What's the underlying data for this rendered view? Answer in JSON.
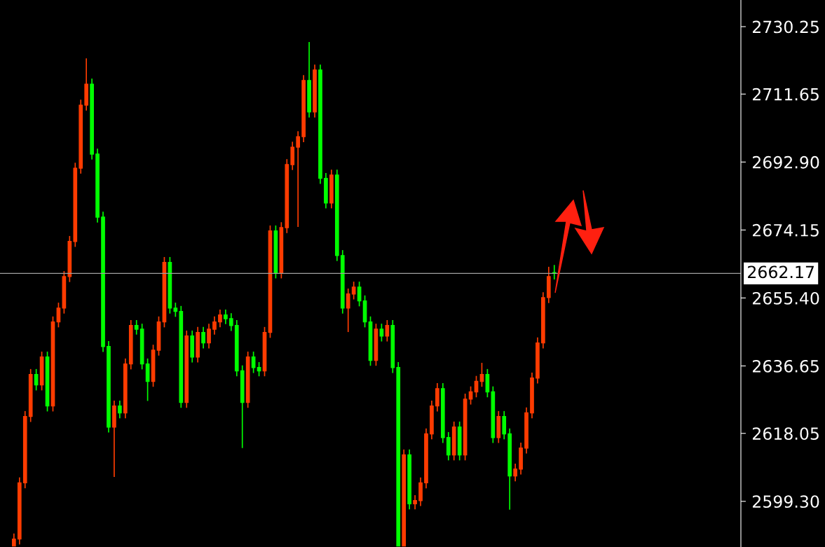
{
  "chart_data": {
    "type": "candlestick",
    "categories": [
      null,
      null,
      null,
      null,
      null,
      null,
      null,
      null,
      null,
      null,
      null,
      null,
      null,
      null,
      null,
      null,
      null,
      null,
      null,
      null,
      null,
      null,
      null,
      null,
      null,
      null,
      null,
      null,
      null,
      null,
      null,
      null,
      null,
      null,
      null,
      null,
      null,
      null,
      null,
      null,
      null,
      null,
      null,
      null,
      null,
      null,
      null,
      null,
      null,
      null,
      null,
      null,
      null,
      null,
      null,
      null,
      null,
      null,
      null,
      null,
      null,
      null,
      null,
      null,
      null,
      null,
      null,
      null,
      null,
      null,
      null,
      null,
      null,
      null,
      null,
      null,
      null,
      null,
      null,
      null,
      null,
      null,
      null,
      null,
      null,
      null,
      null,
      null,
      null,
      null,
      null,
      null,
      null,
      null,
      null,
      null,
      null,
      null,
      null,
      null,
      null,
      null,
      null,
      null,
      null,
      null,
      null,
      null,
      null,
      null,
      null,
      null,
      null,
      null,
      null,
      null,
      null,
      null,
      null,
      null,
      null,
      null,
      null,
      null,
      null,
      null,
      null,
      null,
      null,
      null,
      null,
      null,
      null
    ],
    "colors": [
      null,
      null,
      "#ff3c00",
      "#ff3c00",
      "#ff3c00",
      "#ff3c00",
      "#00ff00",
      "#ff3c00",
      "#00ff00",
      "#ff3c00",
      "#ff3c00",
      "#ff3c00",
      "#ff3c00",
      "#ff3c00",
      "#ff3c00",
      "#ff3c00",
      "#00ff00",
      "#00ff00",
      "#00ff00",
      "#00ff00",
      "#ff3c00",
      "#00ff00",
      "#ff3c00",
      "#ff3c00",
      "#00ff00",
      "#00ff00",
      "#00ff00",
      "#ff3c00",
      "#ff3c00",
      "#ff3c00",
      "#00ff00",
      "#00ff00",
      "#00ff00",
      "#ff3c00",
      "#00ff00",
      "#ff3c00",
      "#00ff00",
      "#ff3c00",
      "#ff3c00",
      "#ff3c00",
      "#00ff00",
      "#00ff00",
      "#00ff00",
      "#00ff00",
      "#ff3c00",
      "#00ff00",
      "#00ff00",
      "#ff3c00",
      "#ff3c00",
      "#00ff00",
      "#ff3c00",
      "#ff3c00",
      "#ff3c00",
      "#ff3c00",
      "#ff3c00",
      "#00ff00",
      "#ff3c00",
      "#00ff00",
      "#00ff00",
      "#ff3c00",
      "#00ff00",
      "#00ff00",
      "#ff3c00",
      "#ff3c00",
      "#00ff00",
      "#00ff00",
      "#00ff00",
      "#ff3c00",
      "#00ff00",
      "#ff3c00",
      "#00ff00",
      "#00ff00",
      "#ff3c00",
      "#00ff00",
      "#ff3c00",
      "#ff3c00",
      "#ff3c00",
      "#ff3c00",
      "#ff3c00",
      "#00ff00",
      "#00ff00",
      "#ff3c00",
      "#00ff00",
      "#ff3c00",
      "#ff3c00",
      "#ff3c00",
      "#ff3c00",
      "#00ff00",
      "#00ff00",
      "#ff3c00",
      "#00ff00",
      "#00ff00",
      "#ff3c00",
      "#ff3c00",
      "#ff3c00",
      "#ff3c00",
      "#ff3c00",
      "#ff3c00",
      "#ff3c00",
      "#00ff00",
      null,
      null,
      null,
      null,
      null,
      null,
      null,
      null,
      null,
      null,
      null,
      null,
      null,
      null,
      null,
      null,
      null,
      null,
      null,
      null,
      null,
      null,
      null,
      null,
      null,
      null,
      null,
      null,
      null,
      null,
      null,
      null,
      null
    ],
    "ohlc": [
      null,
      null,
      [
        2587.0,
        2590.4,
        2587.0,
        2588.9
      ],
      [
        2588.9,
        2605.9,
        2587.4,
        2604.4
      ],
      [
        2604.4,
        2624.2,
        2602.9,
        2622.7
      ],
      [
        2622.7,
        2635.8,
        2621.2,
        2634.3
      ],
      [
        2634.3,
        2635.8,
        2629.9,
        2631.4
      ],
      [
        2631.4,
        2640.6,
        2629.9,
        2639.1
      ],
      [
        2639.1,
        2640.6,
        2624.1,
        2625.6
      ],
      [
        2625.6,
        2650.3,
        2624.1,
        2648.8
      ],
      [
        2648.8,
        2654.1,
        2647.3,
        2652.6
      ],
      [
        2652.6,
        2662.8,
        2651.1,
        2661.3
      ],
      [
        2661.3,
        2672.5,
        2659.8,
        2671.0
      ],
      [
        2671.0,
        2692.7,
        2669.5,
        2691.2
      ],
      [
        2691.2,
        2710.1,
        2689.7,
        2708.6
      ],
      [
        2708.6,
        2721.5,
        2707.1,
        2714.4
      ],
      [
        2714.4,
        2715.9,
        2693.6,
        2695.1
      ],
      [
        2695.1,
        2696.6,
        2676.2,
        2677.7
      ],
      [
        2677.7,
        2679.2,
        2640.5,
        2642.0
      ],
      [
        2642.0,
        2643.5,
        2618.3,
        2619.8
      ],
      [
        2619.8,
        2627.1,
        2606.0,
        2625.6
      ],
      [
        2625.6,
        2627.1,
        2622.2,
        2623.7
      ],
      [
        2623.7,
        2638.7,
        2622.2,
        2637.2
      ],
      [
        2637.2,
        2649.3,
        2635.7,
        2647.8
      ],
      [
        2647.8,
        2649.3,
        2645.3,
        2646.8
      ],
      [
        2646.8,
        2648.3,
        2635.7,
        2637.2
      ],
      [
        2637.2,
        2638.7,
        2627.0,
        2632.4
      ],
      [
        2632.4,
        2642.5,
        2630.9,
        2641.0
      ],
      [
        2641.0,
        2650.3,
        2639.5,
        2648.8
      ],
      [
        2648.8,
        2666.7,
        2647.3,
        2665.2
      ],
      [
        2665.2,
        2666.7,
        2651.1,
        2652.6
      ],
      [
        2652.6,
        2654.1,
        2650.2,
        2651.7
      ],
      [
        2651.7,
        2653.2,
        2625.1,
        2626.6
      ],
      [
        2626.6,
        2646.4,
        2625.1,
        2644.9
      ],
      [
        2644.9,
        2646.4,
        2637.6,
        2639.1
      ],
      [
        2639.1,
        2647.4,
        2637.6,
        2645.9
      ],
      [
        2645.9,
        2647.4,
        2641.5,
        2643.0
      ],
      [
        2643.0,
        2648.3,
        2641.5,
        2646.8
      ],
      [
        2646.8,
        2650.3,
        2645.3,
        2648.8
      ],
      [
        2648.8,
        2652.2,
        2647.3,
        2650.7
      ],
      [
        2650.7,
        2652.2,
        2648.2,
        2649.7
      ],
      [
        2649.7,
        2651.2,
        2646.3,
        2647.8
      ],
      [
        2647.8,
        2649.3,
        2633.8,
        2635.3
      ],
      [
        2635.3,
        2636.8,
        2614.0,
        2626.6
      ],
      [
        2626.6,
        2640.6,
        2625.1,
        2639.1
      ],
      [
        2639.1,
        2640.6,
        2634.7,
        2636.2
      ],
      [
        2636.2,
        2637.7,
        2633.8,
        2635.3
      ],
      [
        2635.3,
        2647.4,
        2633.8,
        2645.9
      ],
      [
        2645.9,
        2675.4,
        2644.4,
        2673.9
      ],
      [
        2673.9,
        2675.4,
        2660.8,
        2662.3
      ],
      [
        2662.3,
        2676.3,
        2660.8,
        2674.8
      ],
      [
        2674.8,
        2693.7,
        2673.3,
        2692.2
      ],
      [
        2692.2,
        2698.5,
        2690.7,
        2697.0
      ],
      [
        2697.0,
        2701.4,
        2675.0,
        2699.9
      ],
      [
        2699.9,
        2716.9,
        2698.4,
        2715.4
      ],
      [
        2715.4,
        2726.0,
        2705.2,
        2706.7
      ],
      [
        2706.7,
        2719.8,
        2705.2,
        2718.3
      ],
      [
        2718.3,
        2719.8,
        2686.9,
        2688.4
      ],
      [
        2688.4,
        2689.9,
        2680.1,
        2681.6
      ],
      [
        2681.6,
        2690.8,
        2680.1,
        2689.3
      ],
      [
        2689.3,
        2690.8,
        2665.6,
        2667.1
      ],
      [
        2667.1,
        2668.6,
        2651.1,
        2652.6
      ],
      [
        2652.6,
        2658.0,
        2646.0,
        2656.5
      ],
      [
        2656.5,
        2659.9,
        2655.0,
        2658.4
      ],
      [
        2658.4,
        2659.9,
        2653.1,
        2654.6
      ],
      [
        2654.6,
        2656.1,
        2647.3,
        2648.8
      ],
      [
        2648.8,
        2650.3,
        2636.7,
        2638.2
      ],
      [
        2638.2,
        2648.3,
        2636.7,
        2646.8
      ],
      [
        2646.8,
        2648.3,
        2643.4,
        2644.9
      ],
      [
        2644.9,
        2649.3,
        2643.4,
        2647.8
      ],
      [
        2647.8,
        2649.3,
        2634.7,
        2636.2
      ],
      [
        2636.2,
        2637.7,
        2587.0,
        2587.0
      ],
      [
        2587.0,
        2613.6,
        2587.0,
        2612.1
      ],
      [
        2612.1,
        2613.6,
        2597.1,
        2598.6
      ],
      [
        2598.6,
        2601.0,
        2597.1,
        2599.5
      ],
      [
        2599.5,
        2605.9,
        2598.0,
        2604.4
      ],
      [
        2604.4,
        2619.4,
        2602.9,
        2617.9
      ],
      [
        2617.9,
        2627.1,
        2616.4,
        2625.6
      ],
      [
        2625.6,
        2631.9,
        2624.1,
        2630.4
      ],
      [
        2630.4,
        2631.9,
        2615.4,
        2616.9
      ],
      [
        2616.9,
        2618.4,
        2610.6,
        2612.1
      ],
      [
        2612.1,
        2621.3,
        2610.6,
        2619.8
      ],
      [
        2619.8,
        2621.3,
        2610.6,
        2612.1
      ],
      [
        2612.1,
        2629.0,
        2610.6,
        2627.5
      ],
      [
        2627.5,
        2631.0,
        2626.0,
        2629.5
      ],
      [
        2629.5,
        2633.9,
        2628.0,
        2632.4
      ],
      [
        2632.4,
        2637.5,
        2630.9,
        2634.3
      ],
      [
        2634.3,
        2635.8,
        2628.0,
        2629.5
      ],
      [
        2629.5,
        2631.0,
        2615.4,
        2616.9
      ],
      [
        2616.9,
        2624.2,
        2615.4,
        2622.7
      ],
      [
        2622.7,
        2624.2,
        2616.4,
        2617.9
      ],
      [
        2617.9,
        2619.4,
        2597.0,
        2606.3
      ],
      [
        2606.3,
        2609.7,
        2604.8,
        2608.2
      ],
      [
        2608.2,
        2615.5,
        2606.7,
        2614.0
      ],
      [
        2614.0,
        2625.2,
        2612.5,
        2623.7
      ],
      [
        2623.7,
        2634.8,
        2622.2,
        2633.3
      ],
      [
        2633.3,
        2644.5,
        2631.8,
        2643.0
      ],
      [
        2643.0,
        2657.0,
        2641.5,
        2655.5
      ],
      [
        2655.5,
        2664.0,
        2654.0,
        2661.3
      ],
      [
        2662.4,
        2664.5,
        2660.5,
        2662.2
      ],
      null,
      null,
      null,
      null,
      null,
      null,
      null,
      null,
      null,
      null,
      null,
      null,
      null,
      null,
      null,
      null,
      null,
      null,
      null,
      null,
      null,
      null,
      null,
      null,
      null,
      null,
      null,
      null,
      null,
      null,
      null,
      null,
      null
    ],
    "ylim": [
      2586.7,
      2737.6
    ],
    "yticks": [
      {
        "value": 2599.3,
        "label": "2599.30"
      },
      {
        "value": 2618.05,
        "label": "2618.05"
      },
      {
        "value": 2636.65,
        "label": "2636.65"
      },
      {
        "value": 2655.4,
        "label": "2655.40"
      },
      {
        "value": 2674.15,
        "label": "2674.15"
      },
      {
        "value": 2692.9,
        "label": "2692.90"
      },
      {
        "value": 2711.65,
        "label": "2711.65"
      },
      {
        "value": 2730.25,
        "label": "2730.25"
      }
    ],
    "tick_labels": "y",
    "ref_lines": [
      {
        "axis": "y",
        "value": 2662.17,
        "label": "2662.17",
        "color": "#a0a0a0"
      }
    ],
    "grid": false,
    "legend": false
  }
}
